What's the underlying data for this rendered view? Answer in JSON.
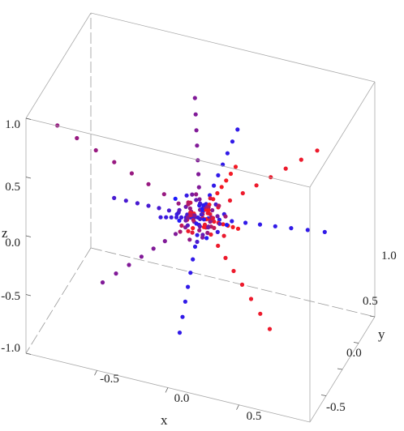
{
  "chart_data": {
    "type": "scatter3d",
    "title": "",
    "xlabel": "x",
    "ylabel": "y",
    "zlabel": "z",
    "xlim": [
      -1,
      1
    ],
    "ylim": [
      -1,
      1
    ],
    "zlim": [
      -1,
      1
    ],
    "x_ticks": [
      "-0.5",
      "0.0",
      "0.5"
    ],
    "y_ticks": [
      "-0.5",
      "0.0",
      "0.5",
      "1.0"
    ],
    "z_ticks": [
      "-1.0",
      "-0.5",
      "0.0",
      "0.5",
      "1.0"
    ],
    "box": true,
    "grid": false,
    "color_low": "#1a1aff",
    "color_high": "#ff1a1a",
    "spokes": [
      {
        "direction": [
          -0.98,
          -0.12,
          0.55
        ],
        "blend": 0.55
      },
      {
        "direction": [
          -0.05,
          0.05,
          0.98
        ],
        "blend": 0.45
      },
      {
        "direction": [
          0.25,
          0.05,
          0.8
        ],
        "blend": 0.1
      },
      {
        "direction": [
          0.72,
          0.45,
          0.58
        ],
        "blend": 0.92
      },
      {
        "direction": [
          -0.7,
          0.05,
          -0.78
        ],
        "blend": 0.45
      },
      {
        "direction": [
          -0.1,
          -0.2,
          -0.92
        ],
        "blend": 0.1
      },
      {
        "direction": [
          0.5,
          -0.05,
          -0.78
        ],
        "blend": 0.92
      },
      {
        "direction": [
          0.75,
          0.55,
          -0.15
        ],
        "blend": 0.1
      },
      {
        "direction": [
          -0.58,
          -0.12,
          0.05
        ],
        "blend": 0.2
      },
      {
        "direction": [
          0.18,
          0.3,
          0.35
        ],
        "blend": 0.95
      },
      {
        "direction": [
          0.22,
          0.2,
          -0.12
        ],
        "blend": 0.95
      },
      {
        "direction": [
          -0.28,
          0.0,
          -0.08
        ],
        "blend": 0.15
      }
    ]
  }
}
